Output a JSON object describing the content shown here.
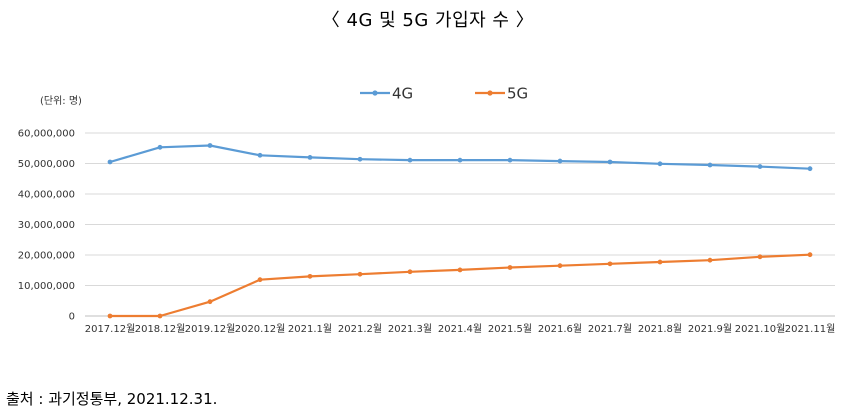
{
  "title": "〈 4G 및 5G 가입자 수 〉",
  "source": "출처 : 과기정통부,  2021.12.31.",
  "chart_data": {
    "type": "line",
    "unit_label": "(단위: 명)",
    "categories": [
      "2017.12월",
      "2018.12월",
      "2019.12월",
      "2020.12월",
      "2021.1월",
      "2021.2월",
      "2021.3월",
      "2021.4월",
      "2021.5월",
      "2021.6월",
      "2021.7월",
      "2021.8월",
      "2021.9월",
      "2021.10월",
      "2021.11월"
    ],
    "series": [
      {
        "name": "4G",
        "color": "#5B9BD5",
        "values": [
          50500000,
          55300000,
          55900000,
          52700000,
          52000000,
          51400000,
          51100000,
          51100000,
          51100000,
          50800000,
          50500000,
          49900000,
          49500000,
          49000000,
          48300000
        ]
      },
      {
        "name": "5G",
        "color": "#ED7D31",
        "values": [
          0,
          0,
          4700000,
          11900000,
          13000000,
          13700000,
          14500000,
          15100000,
          15900000,
          16500000,
          17100000,
          17700000,
          18300000,
          19400000,
          20100000
        ]
      }
    ],
    "ylim": [
      0,
      60000000
    ],
    "yticks": [
      0,
      10000000,
      20000000,
      30000000,
      40000000,
      50000000,
      60000000
    ],
    "ytick_labels": [
      "0",
      "10,000,000",
      "20,000,000",
      "30,000,000",
      "40,000,000",
      "50,000,000",
      "60,000,000"
    ],
    "grid": true,
    "legend_position": "top-center"
  }
}
